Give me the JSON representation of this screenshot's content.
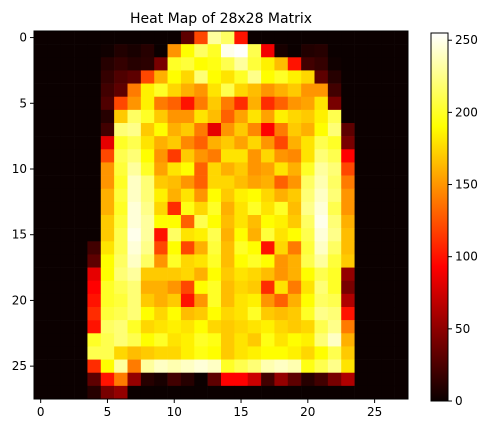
{
  "chart_data": {
    "type": "heatmap",
    "title": "Heat Map of 28x28 Matrix",
    "xlabel": "",
    "ylabel": "",
    "xticks": [
      0,
      5,
      10,
      15,
      20,
      25
    ],
    "yticks": [
      0,
      5,
      10,
      15,
      20,
      25
    ],
    "colorbar_ticks": [
      0,
      50,
      100,
      150,
      200,
      250
    ],
    "colormap": "hot",
    "vmin": 0,
    "vmax": 255,
    "xlim": [
      -0.5,
      27.5
    ],
    "ylim": [
      27.5,
      -0.5
    ],
    "rows": 28,
    "cols": 28,
    "values": [
      [
        0,
        0,
        0,
        0,
        0,
        0,
        0,
        0,
        0,
        0,
        0,
        30,
        120,
        230,
        215,
        100,
        0,
        0,
        0,
        0,
        0,
        0,
        0,
        0,
        0,
        0,
        0,
        0
      ],
      [
        0,
        0,
        0,
        0,
        0,
        2,
        8,
        5,
        10,
        0,
        150,
        190,
        215,
        200,
        250,
        255,
        210,
        85,
        5,
        0,
        8,
        10,
        0,
        0,
        0,
        0,
        0,
        0
      ],
      [
        0,
        0,
        0,
        0,
        0,
        10,
        15,
        10,
        12,
        40,
        200,
        205,
        190,
        195,
        210,
        230,
        205,
        185,
        165,
        100,
        20,
        15,
        2,
        0,
        0,
        0,
        0,
        0
      ],
      [
        0,
        0,
        0,
        0,
        0,
        15,
        25,
        30,
        120,
        160,
        190,
        175,
        220,
        190,
        180,
        200,
        225,
        190,
        200,
        185,
        175,
        30,
        10,
        0,
        0,
        0,
        0,
        0
      ],
      [
        0,
        0,
        0,
        0,
        0,
        20,
        30,
        140,
        185,
        200,
        175,
        160,
        150,
        180,
        210,
        175,
        165,
        150,
        160,
        170,
        150,
        150,
        20,
        0,
        0,
        0,
        0,
        0
      ],
      [
        0,
        0,
        0,
        0,
        0,
        25,
        120,
        150,
        185,
        140,
        130,
        100,
        140,
        170,
        140,
        110,
        160,
        110,
        130,
        150,
        155,
        180,
        40,
        0,
        0,
        0,
        0,
        0
      ],
      [
        0,
        0,
        0,
        0,
        0,
        10,
        170,
        215,
        200,
        170,
        150,
        150,
        180,
        165,
        130,
        155,
        180,
        155,
        185,
        175,
        170,
        185,
        210,
        0,
        0,
        0,
        0,
        0
      ],
      [
        0,
        0,
        0,
        0,
        0,
        20,
        220,
        225,
        170,
        190,
        160,
        170,
        140,
        80,
        150,
        170,
        145,
        90,
        140,
        170,
        160,
        190,
        220,
        30,
        0,
        0,
        0,
        0
      ],
      [
        0,
        0,
        0,
        0,
        0,
        80,
        200,
        210,
        180,
        160,
        170,
        145,
        130,
        160,
        170,
        155,
        175,
        150,
        120,
        160,
        180,
        210,
        200,
        40,
        0,
        0,
        0,
        0
      ],
      [
        0,
        0,
        0,
        0,
        0,
        120,
        210,
        220,
        190,
        150,
        115,
        170,
        150,
        140,
        180,
        180,
        150,
        175,
        150,
        145,
        180,
        220,
        210,
        90,
        0,
        0,
        0,
        0
      ],
      [
        0,
        0,
        0,
        0,
        0,
        150,
        205,
        230,
        200,
        155,
        180,
        190,
        130,
        175,
        160,
        170,
        150,
        155,
        180,
        160,
        200,
        230,
        220,
        120,
        0,
        0,
        0,
        0
      ],
      [
        0,
        0,
        0,
        0,
        0,
        150,
        200,
        240,
        220,
        170,
        165,
        150,
        130,
        175,
        175,
        165,
        155,
        160,
        130,
        150,
        215,
        235,
        215,
        140,
        0,
        0,
        0,
        0
      ],
      [
        0,
        0,
        0,
        0,
        0,
        160,
        205,
        240,
        220,
        185,
        160,
        180,
        150,
        190,
        170,
        185,
        190,
        175,
        160,
        170,
        220,
        240,
        220,
        150,
        0,
        0,
        0,
        0
      ],
      [
        0,
        0,
        0,
        0,
        0,
        160,
        200,
        245,
        225,
        175,
        110,
        195,
        175,
        200,
        160,
        180,
        200,
        180,
        200,
        165,
        225,
        245,
        210,
        150,
        0,
        0,
        0,
        0
      ],
      [
        0,
        0,
        0,
        0,
        0,
        170,
        205,
        245,
        230,
        190,
        190,
        130,
        210,
        190,
        165,
        180,
        165,
        190,
        185,
        170,
        215,
        250,
        220,
        160,
        0,
        0,
        0,
        0
      ],
      [
        0,
        0,
        0,
        0,
        0,
        170,
        210,
        250,
        230,
        100,
        215,
        180,
        185,
        210,
        160,
        190,
        160,
        205,
        180,
        190,
        210,
        245,
        225,
        165,
        0,
        0,
        0,
        0
      ],
      [
        0,
        0,
        0,
        0,
        20,
        180,
        210,
        245,
        225,
        120,
        190,
        120,
        160,
        205,
        165,
        200,
        190,
        100,
        175,
        140,
        205,
        240,
        215,
        165,
        0,
        0,
        0,
        0
      ],
      [
        0,
        0,
        0,
        0,
        30,
        190,
        215,
        240,
        215,
        150,
        200,
        175,
        180,
        200,
        165,
        190,
        200,
        190,
        150,
        160,
        210,
        230,
        205,
        170,
        0,
        0,
        0,
        0
      ],
      [
        0,
        0,
        0,
        0,
        80,
        190,
        220,
        230,
        170,
        170,
        170,
        175,
        160,
        190,
        170,
        180,
        175,
        165,
        150,
        160,
        190,
        210,
        200,
        50,
        0,
        0,
        0,
        0
      ],
      [
        0,
        0,
        0,
        0,
        90,
        200,
        210,
        220,
        160,
        160,
        150,
        120,
        190,
        200,
        165,
        175,
        170,
        110,
        180,
        140,
        180,
        220,
        200,
        40,
        0,
        0,
        0,
        0
      ],
      [
        0,
        0,
        0,
        0,
        100,
        200,
        205,
        220,
        170,
        160,
        170,
        100,
        150,
        200,
        165,
        180,
        185,
        150,
        130,
        160,
        190,
        215,
        210,
        60,
        0,
        0,
        0,
        0
      ],
      [
        0,
        0,
        0,
        0,
        110,
        205,
        210,
        220,
        190,
        175,
        190,
        165,
        170,
        190,
        175,
        180,
        200,
        170,
        165,
        170,
        200,
        225,
        220,
        100,
        0,
        0,
        0,
        0
      ],
      [
        0,
        0,
        0,
        0,
        100,
        215,
        220,
        200,
        175,
        180,
        185,
        180,
        190,
        175,
        170,
        175,
        180,
        185,
        175,
        170,
        175,
        210,
        225,
        140,
        0,
        0,
        0,
        0
      ],
      [
        0,
        0,
        0,
        0,
        200,
        210,
        220,
        210,
        190,
        200,
        180,
        185,
        200,
        195,
        170,
        180,
        170,
        195,
        180,
        190,
        185,
        220,
        240,
        160,
        0,
        0,
        0,
        0
      ],
      [
        0,
        0,
        0,
        0,
        210,
        210,
        175,
        165,
        170,
        175,
        175,
        185,
        195,
        190,
        170,
        180,
        185,
        190,
        190,
        185,
        175,
        190,
        210,
        170,
        0,
        0,
        0,
        0
      ],
      [
        0,
        0,
        0,
        0,
        110,
        190,
        230,
        140,
        230,
        240,
        235,
        240,
        245,
        240,
        200,
        210,
        220,
        235,
        240,
        235,
        195,
        210,
        225,
        180,
        0,
        0,
        0,
        0
      ],
      [
        0,
        0,
        0,
        0,
        30,
        100,
        140,
        50,
        10,
        5,
        20,
        10,
        0,
        30,
        90,
        90,
        70,
        20,
        50,
        30,
        10,
        20,
        40,
        60,
        0,
        0,
        0,
        0
      ],
      [
        0,
        0,
        0,
        0,
        10,
        40,
        50,
        0,
        0,
        0,
        0,
        0,
        0,
        0,
        0,
        0,
        0,
        0,
        0,
        0,
        0,
        0,
        0,
        0,
        0,
        0,
        0,
        0
      ]
    ]
  }
}
